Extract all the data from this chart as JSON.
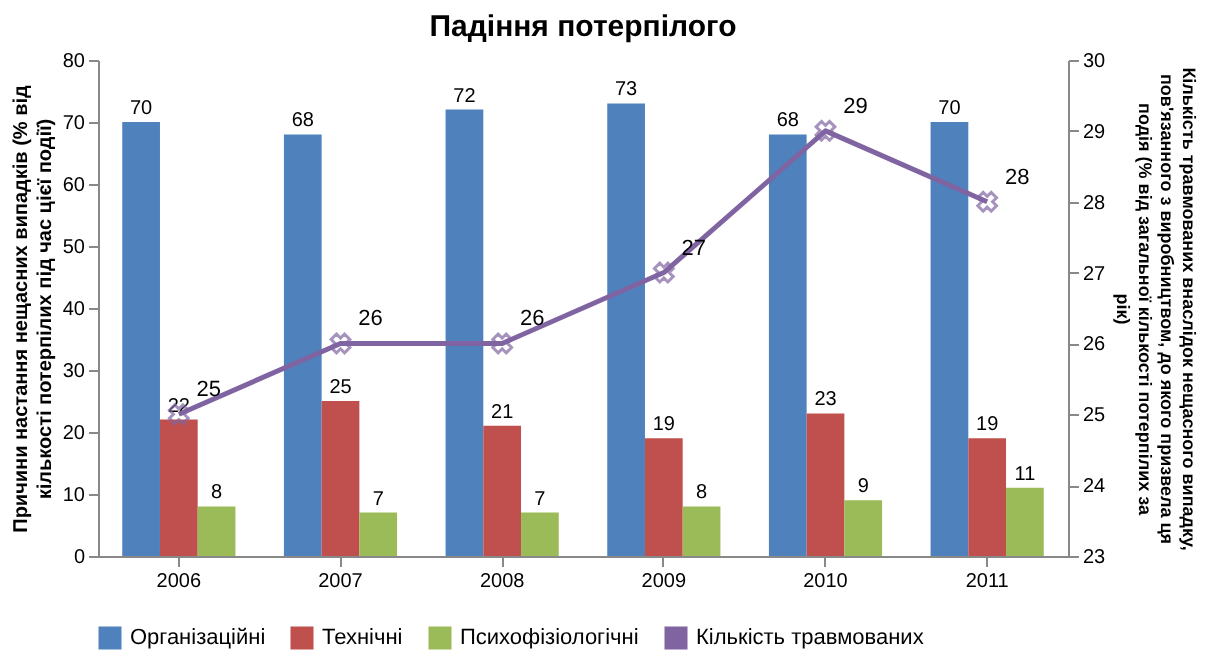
{
  "chart_data": {
    "type": "bar",
    "title": "Падіння потерпілого",
    "categories": [
      "2006",
      "2007",
      "2008",
      "2009",
      "2010",
      "2011"
    ],
    "ylabel": "Причини настання нещасних випадків (% від кількості потерпілих під час цієї події)",
    "y2label": "Кількість травмованих внаслідок нещасного випадку, пов'язанного з виробництвом, до якого призвела ця подія (% від загальної кількості потерпілих за рік)",
    "series": [
      {
        "name": "Організаційні",
        "color": "#4f81bd",
        "values": [
          70,
          68,
          72,
          73,
          68,
          70
        ]
      },
      {
        "name": "Технічні",
        "color": "#c0504d",
        "values": [
          22,
          25,
          21,
          19,
          23,
          19
        ]
      },
      {
        "name": "Психофізіологічні",
        "color": "#9bbb59",
        "values": [
          8,
          7,
          7,
          8,
          9,
          11
        ]
      },
      {
        "name": "Кількість травмованих",
        "type": "line",
        "axis": "y2",
        "color": "#8064a2",
        "values": [
          25,
          26,
          26,
          27,
          29,
          28
        ]
      }
    ],
    "ylim": [
      0,
      80
    ],
    "yticks": [
      0,
      10,
      20,
      30,
      40,
      50,
      60,
      70,
      80
    ],
    "y2lim": [
      23,
      30
    ],
    "y2ticks": [
      23,
      24,
      25,
      26,
      27,
      28,
      29,
      30
    ],
    "data_labels": true,
    "grid": false,
    "legend": "bottom",
    "marker": "cross"
  }
}
